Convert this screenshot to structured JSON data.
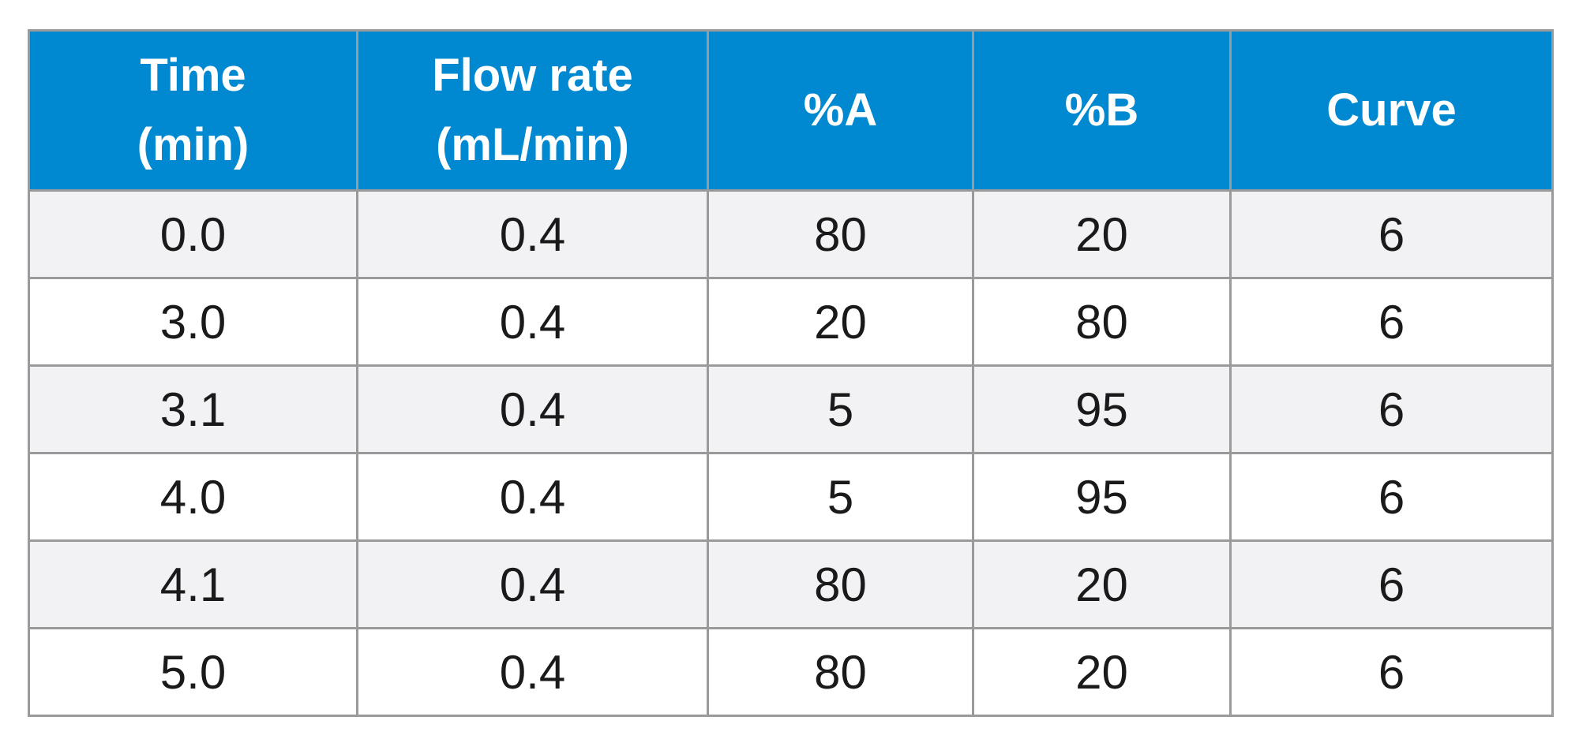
{
  "table": {
    "headers": [
      {
        "line1": "Time",
        "line2": "(min)"
      },
      {
        "line1": "Flow rate",
        "line2": "(mL/min)"
      },
      {
        "line1": "%A",
        "line2": ""
      },
      {
        "line1": "%B",
        "line2": ""
      },
      {
        "line1": "Curve",
        "line2": ""
      }
    ],
    "rows": [
      [
        "0.0",
        "0.4",
        "80",
        "20",
        "6"
      ],
      [
        "3.0",
        "0.4",
        "20",
        "80",
        "6"
      ],
      [
        "3.1",
        "0.4",
        "5",
        "95",
        "6"
      ],
      [
        "4.0",
        "0.4",
        "5",
        "95",
        "6"
      ],
      [
        "4.1",
        "0.4",
        "80",
        "20",
        "6"
      ],
      [
        "5.0",
        "0.4",
        "80",
        "20",
        "6"
      ]
    ]
  },
  "colors": {
    "header_background": "#0089D0",
    "header_text": "#FFFFFF",
    "odd_row_background": "#F2F2F4",
    "even_row_background": "#FFFFFF",
    "grid_line": "#9A9A9A",
    "body_text": "#1A1A1A"
  }
}
